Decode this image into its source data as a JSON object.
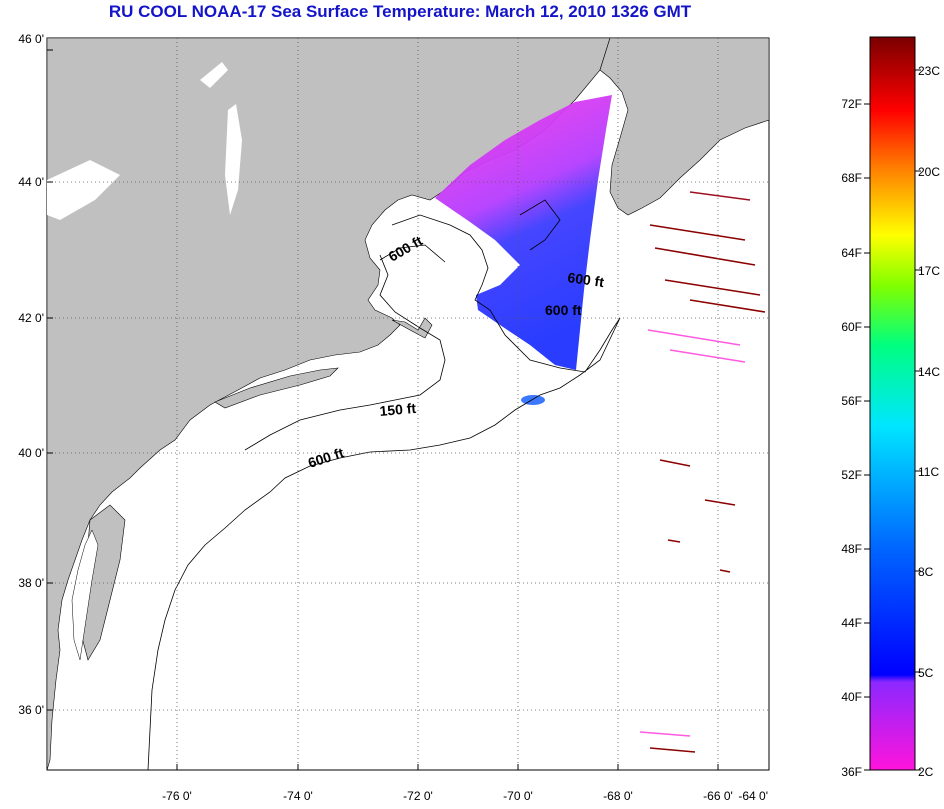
{
  "title": "RU COOL  NOAA-17  Sea Surface Temperature:  March 12, 2010 1326 GMT",
  "lat_labels": [
    "46 0'",
    "44 0'",
    "42 0'",
    "40 0'",
    "38 0'",
    "36 0'"
  ],
  "lon_labels": [
    "-76 0'",
    "-74 0'",
    "-72 0'",
    "-70 0'",
    "-68 0'",
    "-66 0'",
    "-64 0'"
  ],
  "contour_labels": [
    "600 ft",
    "600 ft",
    "600 ft",
    "150 ft",
    "600 ft"
  ],
  "colorbar": {
    "fahrenheit": [
      "72F",
      "68F",
      "64F",
      "60F",
      "56F",
      "52F",
      "48F",
      "44F",
      "40F",
      "36F"
    ],
    "celsius": [
      "23C",
      "20C",
      "17C",
      "14C",
      "11C",
      "8C",
      "5C",
      "2C"
    ]
  },
  "colors": {
    "land": "#c0c0c0",
    "title": "#1414c8"
  }
}
